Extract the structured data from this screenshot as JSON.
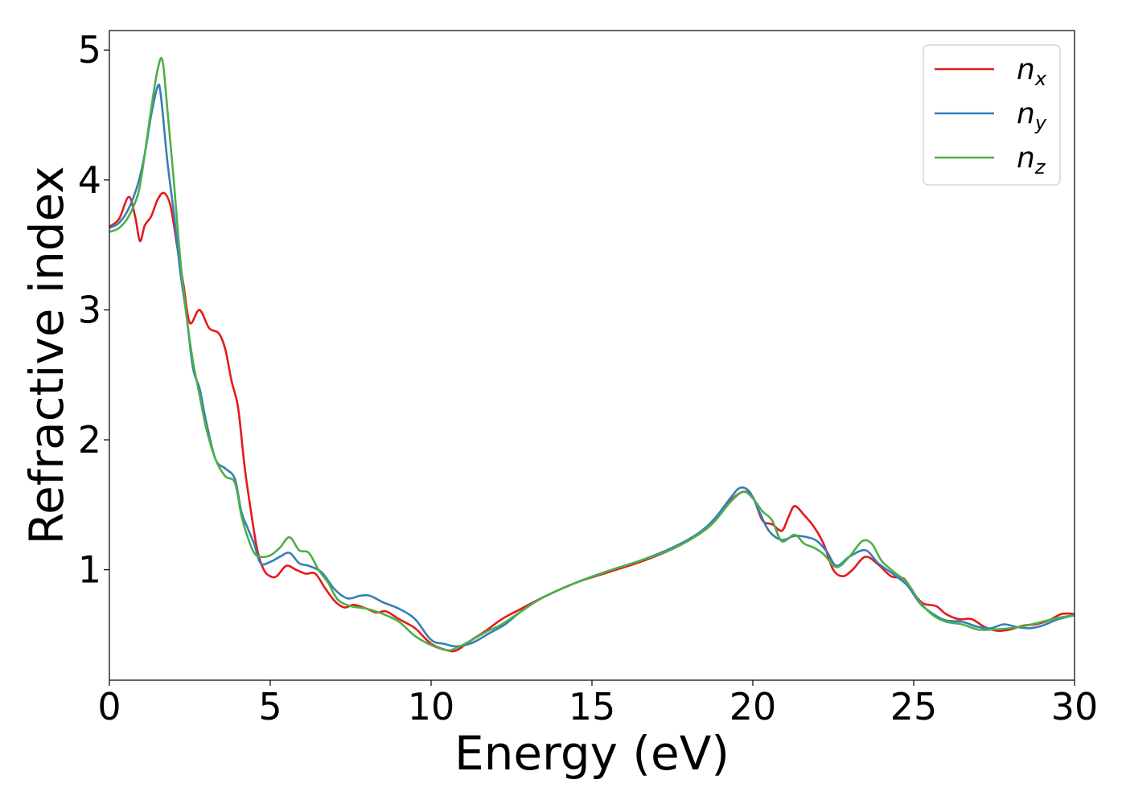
{
  "chart_data": {
    "type": "line",
    "title": "",
    "xlabel": "Energy (eV)",
    "ylabel": "Refractive index",
    "xlim": [
      0,
      30
    ],
    "ylim": [
      0.15,
      5.15
    ],
    "xticks": [
      0,
      5,
      10,
      15,
      20,
      25,
      30
    ],
    "yticks": [
      1,
      2,
      3,
      4,
      5
    ],
    "grid": false,
    "legend_position": "top-right",
    "series": [
      {
        "name": "n_x",
        "name_base": "n",
        "name_sub": "x",
        "color": "#e41a1c",
        "points": [
          [
            0,
            3.64
          ],
          [
            0.3,
            3.7
          ],
          [
            0.6,
            3.87
          ],
          [
            0.8,
            3.72
          ],
          [
            0.95,
            3.53
          ],
          [
            1.1,
            3.65
          ],
          [
            1.3,
            3.72
          ],
          [
            1.5,
            3.85
          ],
          [
            1.7,
            3.9
          ],
          [
            1.9,
            3.8
          ],
          [
            2.1,
            3.5
          ],
          [
            2.3,
            3.2
          ],
          [
            2.5,
            2.9
          ],
          [
            2.8,
            3.0
          ],
          [
            3.1,
            2.86
          ],
          [
            3.4,
            2.82
          ],
          [
            3.6,
            2.7
          ],
          [
            3.8,
            2.45
          ],
          [
            4.0,
            2.25
          ],
          [
            4.2,
            1.8
          ],
          [
            4.4,
            1.45
          ],
          [
            4.6,
            1.15
          ],
          [
            4.8,
            1.0
          ],
          [
            5.0,
            0.95
          ],
          [
            5.2,
            0.95
          ],
          [
            5.5,
            1.03
          ],
          [
            5.8,
            1.0
          ],
          [
            6.1,
            0.97
          ],
          [
            6.4,
            0.97
          ],
          [
            6.7,
            0.86
          ],
          [
            7.0,
            0.76
          ],
          [
            7.3,
            0.71
          ],
          [
            7.6,
            0.73
          ],
          [
            8.0,
            0.7
          ],
          [
            8.3,
            0.67
          ],
          [
            8.6,
            0.68
          ],
          [
            9.0,
            0.62
          ],
          [
            9.5,
            0.55
          ],
          [
            10.0,
            0.43
          ],
          [
            10.5,
            0.38
          ],
          [
            10.8,
            0.38
          ],
          [
            11.2,
            0.45
          ],
          [
            11.7,
            0.53
          ],
          [
            12.2,
            0.62
          ],
          [
            12.8,
            0.7
          ],
          [
            13.5,
            0.79
          ],
          [
            14.5,
            0.9
          ],
          [
            15.5,
            0.98
          ],
          [
            16.5,
            1.06
          ],
          [
            17.5,
            1.16
          ],
          [
            18.3,
            1.27
          ],
          [
            18.8,
            1.37
          ],
          [
            19.3,
            1.53
          ],
          [
            19.7,
            1.6
          ],
          [
            20.0,
            1.56
          ],
          [
            20.3,
            1.38
          ],
          [
            20.6,
            1.35
          ],
          [
            20.9,
            1.3
          ],
          [
            21.1,
            1.4
          ],
          [
            21.3,
            1.49
          ],
          [
            21.6,
            1.42
          ],
          [
            21.9,
            1.33
          ],
          [
            22.2,
            1.2
          ],
          [
            22.5,
            1.0
          ],
          [
            22.8,
            0.95
          ],
          [
            23.1,
            1.0
          ],
          [
            23.5,
            1.1
          ],
          [
            23.9,
            1.04
          ],
          [
            24.3,
            0.95
          ],
          [
            24.7,
            0.93
          ],
          [
            25.0,
            0.82
          ],
          [
            25.3,
            0.74
          ],
          [
            25.7,
            0.72
          ],
          [
            26.0,
            0.66
          ],
          [
            26.4,
            0.62
          ],
          [
            26.8,
            0.62
          ],
          [
            27.2,
            0.56
          ],
          [
            27.6,
            0.53
          ],
          [
            28.0,
            0.54
          ],
          [
            28.4,
            0.57
          ],
          [
            28.8,
            0.58
          ],
          [
            29.2,
            0.61
          ],
          [
            29.6,
            0.66
          ],
          [
            30,
            0.66
          ]
        ]
      },
      {
        "name": "n_y",
        "name_base": "n",
        "name_sub": "y",
        "color": "#377eb8",
        "points": [
          [
            0,
            3.63
          ],
          [
            0.3,
            3.67
          ],
          [
            0.6,
            3.78
          ],
          [
            0.9,
            3.98
          ],
          [
            1.1,
            4.2
          ],
          [
            1.3,
            4.5
          ],
          [
            1.5,
            4.72
          ],
          [
            1.6,
            4.65
          ],
          [
            1.8,
            4.15
          ],
          [
            2.0,
            3.75
          ],
          [
            2.2,
            3.3
          ],
          [
            2.4,
            2.95
          ],
          [
            2.6,
            2.55
          ],
          [
            2.8,
            2.4
          ],
          [
            3.0,
            2.15
          ],
          [
            3.3,
            1.85
          ],
          [
            3.6,
            1.78
          ],
          [
            3.9,
            1.7
          ],
          [
            4.1,
            1.45
          ],
          [
            4.3,
            1.32
          ],
          [
            4.5,
            1.2
          ],
          [
            4.7,
            1.05
          ],
          [
            5.0,
            1.06
          ],
          [
            5.3,
            1.1
          ],
          [
            5.6,
            1.13
          ],
          [
            5.9,
            1.05
          ],
          [
            6.2,
            1.03
          ],
          [
            6.6,
            0.98
          ],
          [
            7.0,
            0.85
          ],
          [
            7.4,
            0.78
          ],
          [
            7.8,
            0.8
          ],
          [
            8.1,
            0.8
          ],
          [
            8.5,
            0.75
          ],
          [
            9.0,
            0.7
          ],
          [
            9.5,
            0.62
          ],
          [
            10.0,
            0.46
          ],
          [
            10.4,
            0.43
          ],
          [
            10.8,
            0.41
          ],
          [
            11.3,
            0.44
          ],
          [
            11.8,
            0.51
          ],
          [
            12.3,
            0.58
          ],
          [
            12.8,
            0.68
          ],
          [
            13.5,
            0.79
          ],
          [
            14.5,
            0.9
          ],
          [
            15.5,
            0.99
          ],
          [
            16.5,
            1.07
          ],
          [
            17.5,
            1.17
          ],
          [
            18.3,
            1.28
          ],
          [
            18.8,
            1.39
          ],
          [
            19.3,
            1.55
          ],
          [
            19.6,
            1.63
          ],
          [
            19.9,
            1.6
          ],
          [
            20.2,
            1.45
          ],
          [
            20.5,
            1.3
          ],
          [
            20.9,
            1.23
          ],
          [
            21.3,
            1.26
          ],
          [
            21.7,
            1.25
          ],
          [
            22.0,
            1.22
          ],
          [
            22.3,
            1.14
          ],
          [
            22.6,
            1.03
          ],
          [
            23.0,
            1.1
          ],
          [
            23.5,
            1.15
          ],
          [
            23.9,
            1.05
          ],
          [
            24.4,
            0.96
          ],
          [
            24.8,
            0.88
          ],
          [
            25.2,
            0.74
          ],
          [
            25.6,
            0.66
          ],
          [
            26.0,
            0.61
          ],
          [
            26.5,
            0.6
          ],
          [
            27.0,
            0.56
          ],
          [
            27.4,
            0.55
          ],
          [
            27.8,
            0.58
          ],
          [
            28.2,
            0.56
          ],
          [
            28.6,
            0.55
          ],
          [
            29.0,
            0.57
          ],
          [
            29.5,
            0.62
          ],
          [
            30,
            0.65
          ]
        ]
      },
      {
        "name": "n_z",
        "name_base": "n",
        "name_sub": "z",
        "color": "#4daf4a",
        "points": [
          [
            0,
            3.6
          ],
          [
            0.3,
            3.63
          ],
          [
            0.6,
            3.72
          ],
          [
            0.9,
            3.9
          ],
          [
            1.1,
            4.2
          ],
          [
            1.3,
            4.55
          ],
          [
            1.5,
            4.85
          ],
          [
            1.65,
            4.92
          ],
          [
            1.8,
            4.55
          ],
          [
            2.0,
            4.0
          ],
          [
            2.2,
            3.4
          ],
          [
            2.4,
            2.95
          ],
          [
            2.6,
            2.6
          ],
          [
            2.8,
            2.35
          ],
          [
            3.0,
            2.1
          ],
          [
            3.3,
            1.85
          ],
          [
            3.6,
            1.72
          ],
          [
            3.9,
            1.67
          ],
          [
            4.1,
            1.42
          ],
          [
            4.3,
            1.25
          ],
          [
            4.5,
            1.13
          ],
          [
            4.7,
            1.1
          ],
          [
            5.0,
            1.11
          ],
          [
            5.3,
            1.17
          ],
          [
            5.6,
            1.25
          ],
          [
            5.9,
            1.15
          ],
          [
            6.2,
            1.13
          ],
          [
            6.5,
            1.0
          ],
          [
            6.8,
            0.9
          ],
          [
            7.1,
            0.77
          ],
          [
            7.5,
            0.72
          ],
          [
            8.0,
            0.7
          ],
          [
            8.5,
            0.66
          ],
          [
            9.0,
            0.6
          ],
          [
            9.5,
            0.49
          ],
          [
            10.0,
            0.42
          ],
          [
            10.5,
            0.38
          ],
          [
            10.8,
            0.4
          ],
          [
            11.2,
            0.45
          ],
          [
            11.7,
            0.52
          ],
          [
            12.2,
            0.58
          ],
          [
            12.8,
            0.68
          ],
          [
            13.5,
            0.79
          ],
          [
            14.5,
            0.9
          ],
          [
            15.5,
            0.99
          ],
          [
            16.5,
            1.07
          ],
          [
            17.5,
            1.16
          ],
          [
            18.3,
            1.27
          ],
          [
            18.8,
            1.37
          ],
          [
            19.3,
            1.52
          ],
          [
            19.7,
            1.6
          ],
          [
            20.0,
            1.55
          ],
          [
            20.3,
            1.45
          ],
          [
            20.6,
            1.38
          ],
          [
            20.9,
            1.22
          ],
          [
            21.3,
            1.27
          ],
          [
            21.6,
            1.2
          ],
          [
            21.9,
            1.17
          ],
          [
            22.2,
            1.12
          ],
          [
            22.6,
            1.02
          ],
          [
            23.0,
            1.1
          ],
          [
            23.4,
            1.22
          ],
          [
            23.7,
            1.2
          ],
          [
            24.0,
            1.07
          ],
          [
            24.4,
            0.98
          ],
          [
            24.8,
            0.9
          ],
          [
            25.2,
            0.75
          ],
          [
            25.6,
            0.65
          ],
          [
            26.0,
            0.6
          ],
          [
            26.5,
            0.58
          ],
          [
            27.0,
            0.54
          ],
          [
            27.5,
            0.54
          ],
          [
            28.0,
            0.55
          ],
          [
            28.5,
            0.57
          ],
          [
            29.0,
            0.6
          ],
          [
            29.5,
            0.63
          ],
          [
            30,
            0.65
          ]
        ]
      }
    ]
  }
}
